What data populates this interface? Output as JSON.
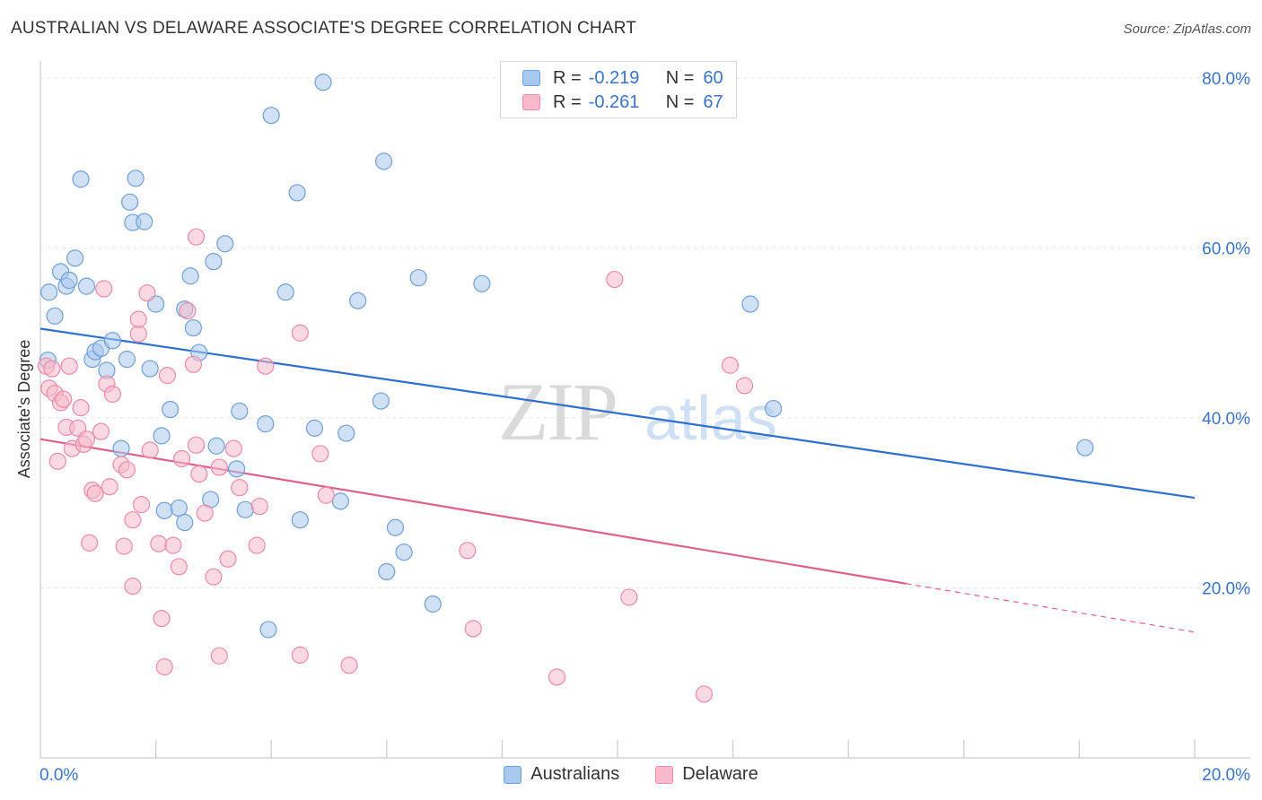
{
  "header": {
    "title": "AUSTRALIAN VS DELAWARE ASSOCIATE'S DEGREE CORRELATION CHART",
    "source": "Source: ZipAtlas.com"
  },
  "legend": {
    "rows": [
      {
        "r_label": "R =",
        "r_value": "-0.219",
        "n_label": "N =",
        "n_value": "60"
      },
      {
        "r_label": "R =",
        "r_value": "-0.261",
        "n_label": "N =",
        "n_value": "67"
      }
    ]
  },
  "watermark": {
    "zip": "ZIP",
    "atlas": "atlas"
  },
  "colors": {
    "australians_fill": "#a9c8ee",
    "australians_stroke": "#6f9fd8",
    "australians_line": "#2f6fce",
    "delaware_fill": "#f7b9cb",
    "delaware_stroke": "#ec8aa8",
    "delaware_line": "#e0608a",
    "axis_text": "#3a73c8",
    "grid": "#e5e5e5"
  },
  "chart_data": {
    "type": "scatter",
    "title": "AUSTRALIAN VS DELAWARE ASSOCIATE'S DEGREE CORRELATION CHART",
    "ylabel": "Associate's Degree",
    "xlabel": "",
    "xlim": [
      0,
      20
    ],
    "ylim": [
      0,
      80
    ],
    "x_tick_labels": [
      "0.0%",
      "20.0%"
    ],
    "y_tick_labels": [
      "20.0%",
      "40.0%",
      "60.0%",
      "80.0%"
    ],
    "y_ticks": [
      20,
      40,
      60,
      80
    ],
    "legend_position": "bottom",
    "series": [
      {
        "name": "Australians",
        "r": -0.219,
        "n": 60,
        "trend": {
          "x": [
            0,
            20
          ],
          "y": [
            50.5,
            30.6
          ]
        },
        "points": [
          [
            0.13,
            46.8
          ],
          [
            0.15,
            54.8
          ],
          [
            0.25,
            52.0
          ],
          [
            0.35,
            57.2
          ],
          [
            0.45,
            55.5
          ],
          [
            0.5,
            56.2
          ],
          [
            0.6,
            58.8
          ],
          [
            0.7,
            68.1
          ],
          [
            0.8,
            55.5
          ],
          [
            0.9,
            46.9
          ],
          [
            0.95,
            47.8
          ],
          [
            1.05,
            48.2
          ],
          [
            1.15,
            45.6
          ],
          [
            1.25,
            49.1
          ],
          [
            1.4,
            36.4
          ],
          [
            1.5,
            46.9
          ],
          [
            1.6,
            63.0
          ],
          [
            1.65,
            68.2
          ],
          [
            1.55,
            65.4
          ],
          [
            1.8,
            63.1
          ],
          [
            1.9,
            45.8
          ],
          [
            2.0,
            53.4
          ],
          [
            2.1,
            37.9
          ],
          [
            2.15,
            29.1
          ],
          [
            2.25,
            41.0
          ],
          [
            2.4,
            29.4
          ],
          [
            2.5,
            27.7
          ],
          [
            2.6,
            56.7
          ],
          [
            2.65,
            50.6
          ],
          [
            2.75,
            47.7
          ],
          [
            2.5,
            52.8
          ],
          [
            2.95,
            30.4
          ],
          [
            3.05,
            36.7
          ],
          [
            3.0,
            58.4
          ],
          [
            3.2,
            60.5
          ],
          [
            3.4,
            34.0
          ],
          [
            3.45,
            40.8
          ],
          [
            3.55,
            29.2
          ],
          [
            3.9,
            39.3
          ],
          [
            3.95,
            15.1
          ],
          [
            4.0,
            75.6
          ],
          [
            4.25,
            54.8
          ],
          [
            4.45,
            66.5
          ],
          [
            4.5,
            28.0
          ],
          [
            4.75,
            38.8
          ],
          [
            4.9,
            79.5
          ],
          [
            5.2,
            30.2
          ],
          [
            5.3,
            38.2
          ],
          [
            5.5,
            53.8
          ],
          [
            5.9,
            42.0
          ],
          [
            5.95,
            70.2
          ],
          [
            6.0,
            21.9
          ],
          [
            6.15,
            27.1
          ],
          [
            6.3,
            24.2
          ],
          [
            6.55,
            56.5
          ],
          [
            6.8,
            18.1
          ],
          [
            7.65,
            55.8
          ],
          [
            12.3,
            53.4
          ],
          [
            12.7,
            41.1
          ],
          [
            18.1,
            36.5
          ]
        ]
      },
      {
        "name": "Delaware",
        "r": -0.261,
        "n": 67,
        "trend": {
          "x": [
            0,
            15
          ],
          "y": [
            37.5,
            20.5
          ],
          "dashed_to": {
            "x": 20,
            "y": 14.8
          }
        },
        "points": [
          [
            0.1,
            46.1
          ],
          [
            0.15,
            43.5
          ],
          [
            0.2,
            45.8
          ],
          [
            0.25,
            42.9
          ],
          [
            0.3,
            34.9
          ],
          [
            0.35,
            41.8
          ],
          [
            0.4,
            42.2
          ],
          [
            0.45,
            38.9
          ],
          [
            0.5,
            46.1
          ],
          [
            0.55,
            36.4
          ],
          [
            0.65,
            38.8
          ],
          [
            0.7,
            41.2
          ],
          [
            0.75,
            36.9
          ],
          [
            0.8,
            37.5
          ],
          [
            0.85,
            25.3
          ],
          [
            0.9,
            31.5
          ],
          [
            0.95,
            31.1
          ],
          [
            1.05,
            38.4
          ],
          [
            1.1,
            55.2
          ],
          [
            1.15,
            44.0
          ],
          [
            1.2,
            31.9
          ],
          [
            1.25,
            42.8
          ],
          [
            1.4,
            34.5
          ],
          [
            1.45,
            24.9
          ],
          [
            1.5,
            33.9
          ],
          [
            1.6,
            28.0
          ],
          [
            1.6,
            20.2
          ],
          [
            1.7,
            49.9
          ],
          [
            1.7,
            51.6
          ],
          [
            1.75,
            29.8
          ],
          [
            1.85,
            54.7
          ],
          [
            1.9,
            36.2
          ],
          [
            2.05,
            25.2
          ],
          [
            2.1,
            16.4
          ],
          [
            2.15,
            10.7
          ],
          [
            2.2,
            45.0
          ],
          [
            2.3,
            25.0
          ],
          [
            2.4,
            22.5
          ],
          [
            2.45,
            35.2
          ],
          [
            2.55,
            52.6
          ],
          [
            2.65,
            46.3
          ],
          [
            2.7,
            36.8
          ],
          [
            2.7,
            61.3
          ],
          [
            2.75,
            33.4
          ],
          [
            2.85,
            28.8
          ],
          [
            3.0,
            21.3
          ],
          [
            3.1,
            34.2
          ],
          [
            3.1,
            12.0
          ],
          [
            3.25,
            23.4
          ],
          [
            3.35,
            36.4
          ],
          [
            3.45,
            31.8
          ],
          [
            3.75,
            25.0
          ],
          [
            3.8,
            29.6
          ],
          [
            3.9,
            46.1
          ],
          [
            4.5,
            50.0
          ],
          [
            4.5,
            12.1
          ],
          [
            4.85,
            35.8
          ],
          [
            4.95,
            30.9
          ],
          [
            5.35,
            10.9
          ],
          [
            7.4,
            24.4
          ],
          [
            7.5,
            15.2
          ],
          [
            8.95,
            9.5
          ],
          [
            9.95,
            56.3
          ],
          [
            10.2,
            18.9
          ],
          [
            11.5,
            7.5
          ],
          [
            11.95,
            46.2
          ],
          [
            12.2,
            43.8
          ]
        ]
      }
    ]
  }
}
